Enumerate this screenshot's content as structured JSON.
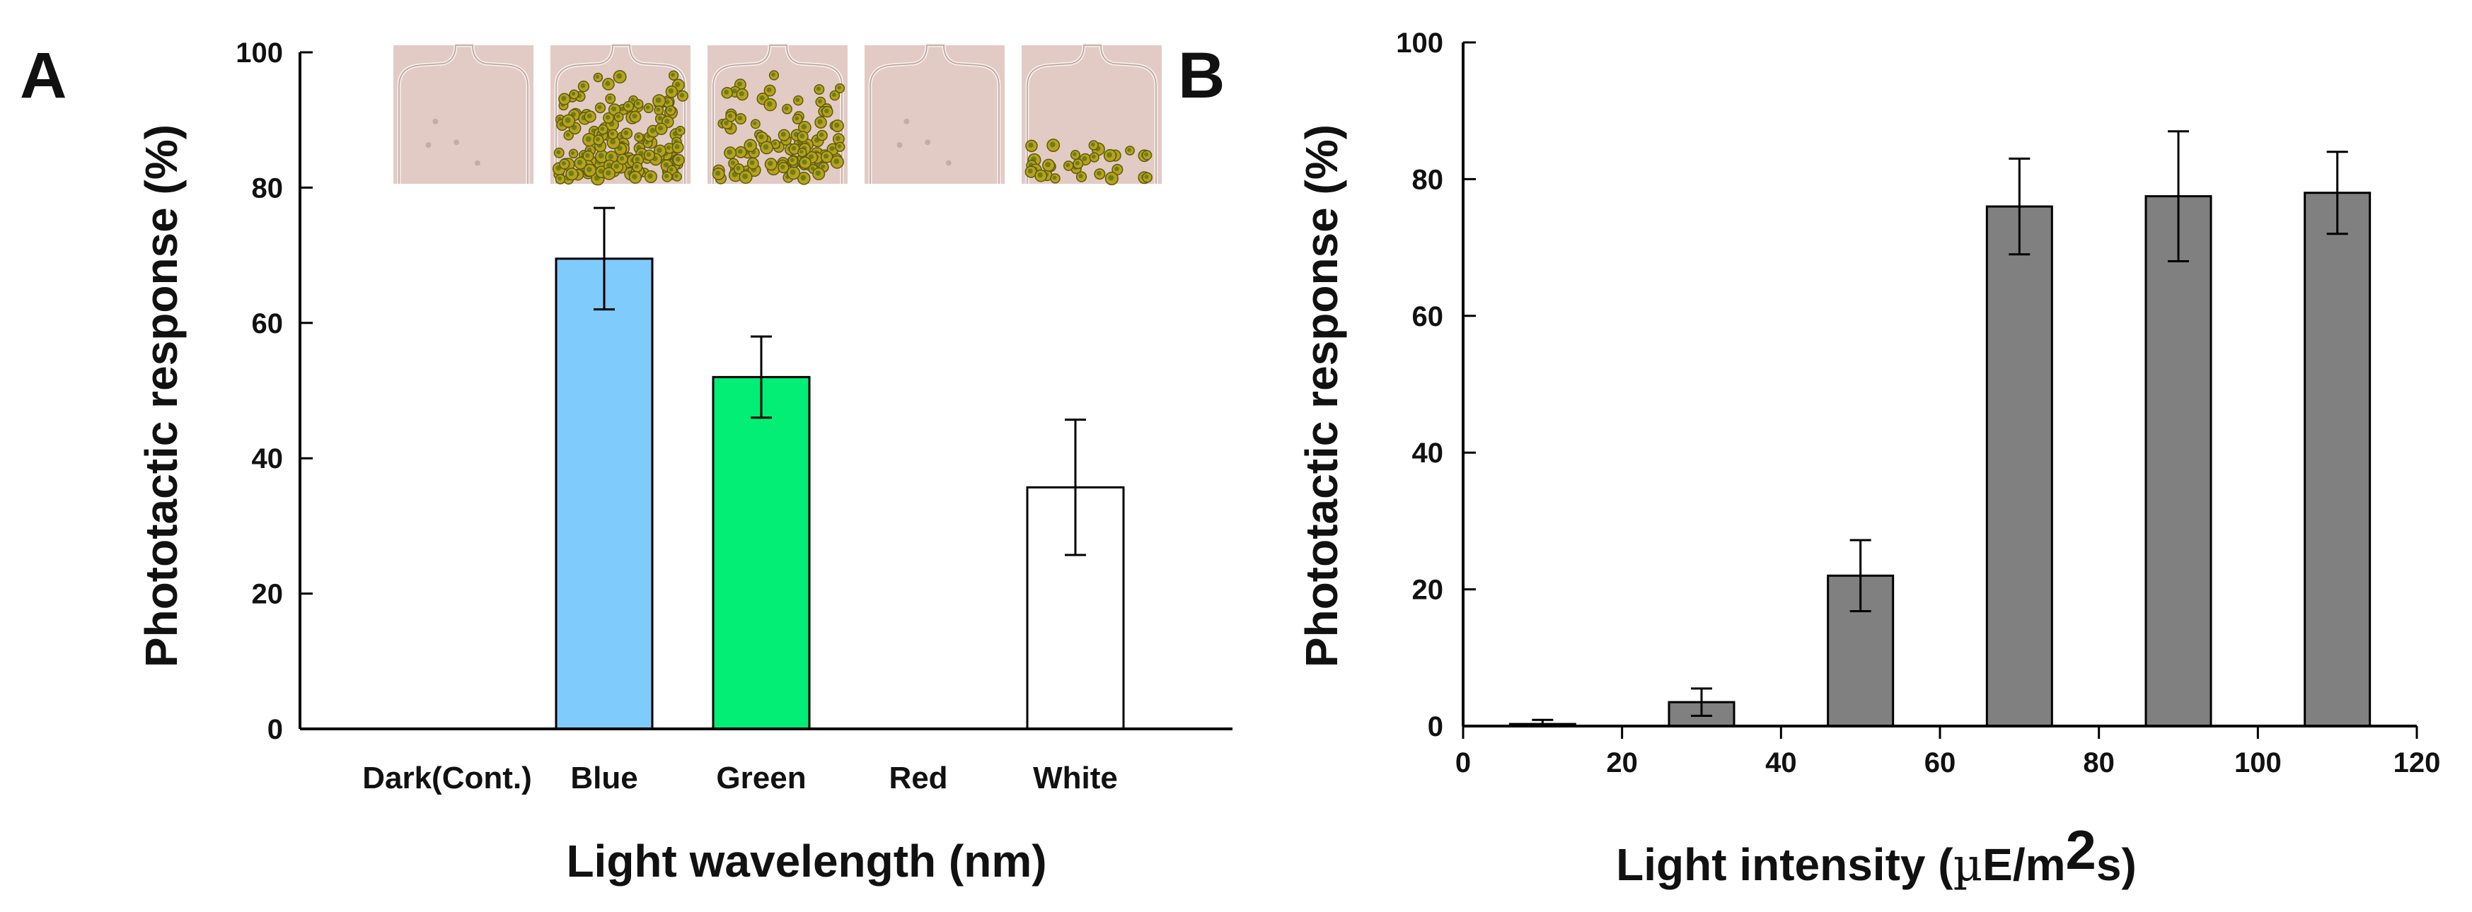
{
  "panels": [
    {
      "panel_label": "A",
      "chart_data": {
        "type": "bar",
        "categories": [
          "Dark(Cont.)",
          "Blue",
          "Green",
          "Red",
          "White"
        ],
        "values": [
          0,
          69.5,
          52,
          0,
          35.7
        ],
        "errors": [
          0,
          7.5,
          6,
          0,
          10
        ],
        "bar_colors": [
          "#ffffff",
          "#7fcbfb",
          "#02ee75",
          "#ffffff",
          "#ffffff"
        ],
        "ylim": [
          0,
          100
        ],
        "yticks": [
          0,
          20,
          40,
          60,
          80,
          100
        ],
        "xlabel": "Light wavelength (nm)",
        "ylabel": "Phototactic response (%)",
        "inset_images": [
          "Dark(Cont.)",
          "Blue",
          "Green",
          "Red",
          "White"
        ]
      }
    },
    {
      "panel_label": "B",
      "chart_data": {
        "type": "bar",
        "x": [
          10,
          30,
          50,
          70,
          90,
          110
        ],
        "values": [
          0.3,
          3.5,
          22,
          76,
          77.5,
          78
        ],
        "errors": [
          0.6,
          2,
          5.2,
          7,
          9.5,
          6
        ],
        "bar_color": "#808080",
        "xlim": [
          0,
          120
        ],
        "xticks": [
          0,
          20,
          40,
          60,
          80,
          100,
          120
        ],
        "ylim": [
          0,
          100
        ],
        "yticks": [
          0,
          20,
          40,
          60,
          80,
          100
        ],
        "xlabel": {
          "prefix": "Light intensity (",
          "mu": "µ",
          "unit": "E/m",
          "sup": "2",
          "suffix": "s)"
        },
        "ylabel": "Phototactic response (%)"
      }
    }
  ]
}
